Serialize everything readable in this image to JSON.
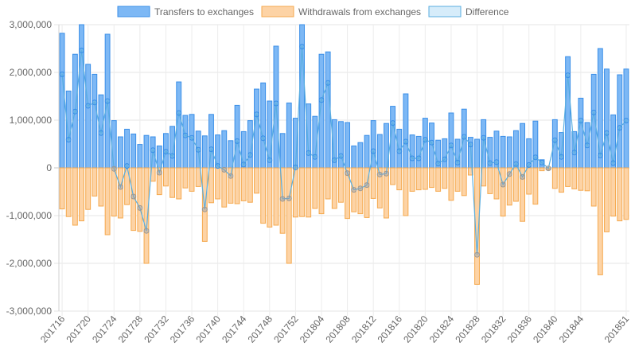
{
  "chart_data": {
    "type": "bar",
    "legend": {
      "placement": "top-center",
      "entries": [
        {
          "label": "Transfers to exchanges",
          "color": "#3b8fe8"
        },
        {
          "label": "Withdrawals from exchanges",
          "color": "#f5a94e"
        },
        {
          "label": "Difference",
          "color": "#5aaee0"
        }
      ]
    },
    "ylim": [
      -3000000,
      3000000
    ],
    "yticks": [
      3000000,
      2000000,
      1000000,
      0,
      -1000000,
      -2000000,
      -3000000
    ],
    "ytick_labels": [
      "3,000,000",
      "2,000,000",
      "1,000,000",
      "0",
      "-1,000,000",
      "-2,000,000",
      "-3,000,000"
    ],
    "xtick_labels": [
      "201716",
      "201720",
      "201724",
      "201728",
      "201732",
      "201736",
      "201740",
      "201744",
      "201748",
      "201752",
      "201804",
      "201808",
      "201812",
      "201816",
      "201820",
      "201824",
      "201828",
      "201832",
      "201836",
      "201840",
      "201844",
      "201851"
    ],
    "xtick_indices": [
      0,
      4,
      8,
      12,
      16,
      20,
      24,
      28,
      32,
      36,
      40,
      44,
      48,
      52,
      56,
      60,
      64,
      68,
      72,
      76,
      80,
      87
    ],
    "series": [
      {
        "name": "Transfers to exchanges",
        "values": [
          2820000,
          1610000,
          2380000,
          3000000,
          2170000,
          1960000,
          1530000,
          2800000,
          990000,
          650000,
          810000,
          710000,
          490000,
          680000,
          650000,
          460000,
          720000,
          870000,
          1800000,
          1100000,
          1120000,
          770000,
          670000,
          1120000,
          690000,
          780000,
          570000,
          1310000,
          760000,
          990000,
          1650000,
          1780000,
          1400000,
          2550000,
          720000,
          1360000,
          1040000,
          3000000,
          1340000,
          1080000,
          2380000,
          2430000,
          1010000,
          970000,
          950000,
          460000,
          530000,
          680000,
          990000,
          700000,
          930000,
          1290000,
          810000,
          1550000,
          690000,
          660000,
          1040000,
          940000,
          580000,
          610000,
          1150000,
          600000,
          1230000,
          640000,
          600000,
          1010000,
          640000,
          770000,
          660000,
          650000,
          780000,
          930000,
          610000,
          980000,
          170000,
          0,
          1010000,
          740000,
          2330000,
          760000,
          1460000,
          950000,
          1960000,
          2500000,
          2070000,
          1110000,
          1950000,
          2070000
        ]
      },
      {
        "name": "Withdrawals from exchanges",
        "values": [
          -860000,
          -1020000,
          -1200000,
          -1110000,
          -870000,
          -590000,
          -800000,
          -1400000,
          -1010000,
          -1050000,
          -770000,
          -1310000,
          -1330000,
          -2000000,
          -280000,
          -560000,
          -380000,
          -620000,
          -650000,
          -420000,
          -490000,
          -390000,
          -1540000,
          -730000,
          -650000,
          -820000,
          -740000,
          -750000,
          -690000,
          -720000,
          -530000,
          -1160000,
          -1240000,
          -1200000,
          -1370000,
          -2000000,
          -1030000,
          -1020000,
          -1030000,
          -850000,
          -960000,
          -650000,
          -850000,
          -720000,
          -1060000,
          -920000,
          -960000,
          -1040000,
          -640000,
          -840000,
          -1050000,
          -350000,
          -460000,
          -1000000,
          -490000,
          -460000,
          -450000,
          -410000,
          -490000,
          -430000,
          -680000,
          -490000,
          -580000,
          -150000,
          -2440000,
          -380000,
          -540000,
          -650000,
          -1010000,
          -780000,
          -700000,
          -1120000,
          -550000,
          -760000,
          -60000,
          -40000,
          -430000,
          -510000,
          -390000,
          -440000,
          -470000,
          -480000,
          -800000,
          -2240000,
          -1340000,
          -1010000,
          -1110000,
          -1080000
        ]
      },
      {
        "name": "Difference",
        "values": [
          1960000,
          590000,
          1180000,
          2460000,
          1300000,
          1370000,
          730000,
          1400000,
          -20000,
          -400000,
          40000,
          -600000,
          -840000,
          -1320000,
          370000,
          -100000,
          340000,
          250000,
          1150000,
          680000,
          630000,
          380000,
          -870000,
          390000,
          40000,
          -40000,
          -170000,
          560000,
          70000,
          270000,
          1120000,
          620000,
          160000,
          1350000,
          -650000,
          -640000,
          10000,
          2540000,
          310000,
          230000,
          1420000,
          1780000,
          160000,
          250000,
          -110000,
          -460000,
          -430000,
          -360000,
          350000,
          -140000,
          -120000,
          940000,
          350000,
          550000,
          200000,
          200000,
          590000,
          530000,
          90000,
          180000,
          470000,
          110000,
          650000,
          490000,
          -1820000,
          630000,
          100000,
          120000,
          -350000,
          -130000,
          80000,
          -190000,
          60000,
          220000,
          110000,
          -10000,
          580000,
          230000,
          1940000,
          320000,
          990000,
          470000,
          1160000,
          260000,
          730000,
          100000,
          840000,
          990000
        ]
      }
    ]
  }
}
